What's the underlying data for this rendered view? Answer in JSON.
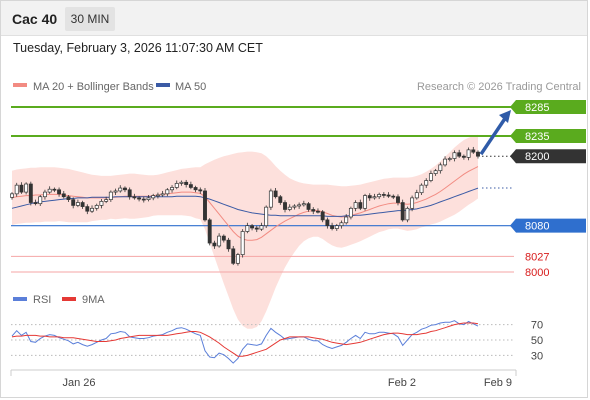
{
  "header": {
    "instrument": "Cac 40",
    "timeframe": "30 MIN",
    "datetime": "Tuesday, February 3, 2026 11:07:30 AM CET"
  },
  "legend": {
    "ma20_label": "MA 20 + Bollinger Bands",
    "ma50_label": "MA 50",
    "copyright": "Research © 2026 Trading Central",
    "rsi_label": "RSI",
    "rsi_ma_label": "9MA"
  },
  "colors": {
    "bollinger_fill": "#fde0dc",
    "ma20": "#f28b82",
    "ma50": "#3b5ba5",
    "resistance": "#5aab1e",
    "support": "#2f6fce",
    "minor_support": "#f4a6a6",
    "minor_support_text": "#d81c1c",
    "last_price": "#333333",
    "arrow": "#2f5ba8",
    "candle_up": "#2e7d32",
    "candle_down": "#c62828",
    "rsi": "#5b7fd9",
    "rsi_ma": "#e53935"
  },
  "chart_data": [
    {
      "type": "candlestick",
      "instrument": "Cac 40",
      "timeframe": "30 MIN",
      "x_labels": [
        "Jan 26",
        "Feb 2",
        "Feb 9"
      ],
      "ylim": [
        7975,
        8305
      ],
      "levels": [
        {
          "value": 8285,
          "label": "8285",
          "kind": "resistance"
        },
        {
          "value": 8235,
          "label": "8235",
          "kind": "resistance"
        },
        {
          "value": 8200,
          "label": "8200",
          "kind": "last_price"
        },
        {
          "value": 8080,
          "label": "8080",
          "kind": "support"
        },
        {
          "value": 8027,
          "label": "8027",
          "kind": "minor_support"
        },
        {
          "value": 8000,
          "label": "8000",
          "kind": "minor_support"
        }
      ],
      "close": [
        8135,
        8150,
        8138,
        8152,
        8120,
        8118,
        8130,
        8138,
        8143,
        8142,
        8135,
        8130,
        8125,
        8115,
        8120,
        8113,
        8105,
        8110,
        8115,
        8122,
        8125,
        8138,
        8140,
        8145,
        8142,
        8130,
        8128,
        8126,
        8125,
        8128,
        8132,
        8133,
        8135,
        8142,
        8146,
        8153,
        8155,
        8151,
        8146,
        8142,
        8140,
        8090,
        8050,
        8045,
        8062,
        8055,
        8040,
        8015,
        8030,
        8070,
        8080,
        8076,
        8074,
        8080,
        8112,
        8140,
        8130,
        8120,
        8108,
        8112,
        8114,
        8116,
        8118,
        8108,
        8105,
        8104,
        8090,
        8080,
        8075,
        8080,
        8085,
        8095,
        8110,
        8120,
        8110,
        8132,
        8128,
        8130,
        8134,
        8133,
        8131,
        8130,
        8120,
        8090,
        8110,
        8128,
        8137,
        8150,
        8158,
        8170,
        8175,
        8185,
        8195,
        8196,
        8206,
        8200,
        8198,
        8211,
        8207,
        8200
      ],
      "ma20": [
        8128,
        8130,
        8131,
        8132,
        8132,
        8133,
        8133,
        8134,
        8134,
        8134,
        8134,
        8133,
        8132,
        8131,
        8130,
        8129,
        8128,
        8128,
        8128,
        8128,
        8128,
        8129,
        8129,
        8130,
        8131,
        8131,
        8131,
        8131,
        8131,
        8131,
        8132,
        8133,
        8134,
        8135,
        8136,
        8137,
        8138,
        8138,
        8138,
        8137,
        8136,
        8130,
        8120,
        8110,
        8100,
        8090,
        8080,
        8070,
        8062,
        8057,
        8055,
        8055,
        8056,
        8060,
        8066,
        8072,
        8078,
        8083,
        8088,
        8092,
        8096,
        8100,
        8103,
        8105,
        8106,
        8106,
        8104,
        8101,
        8098,
        8096,
        8095,
        8096,
        8098,
        8100,
        8102,
        8105,
        8108,
        8111,
        8114,
        8116,
        8118,
        8119,
        8119,
        8118,
        8117,
        8118,
        8120,
        8123,
        8126,
        8130,
        8134,
        8139,
        8145,
        8151,
        8157,
        8163,
        8169,
        8174,
        8178,
        8182
      ],
      "ma50": [
        8110,
        8112,
        8114,
        8116,
        8118,
        8120,
        8121,
        8122,
        8123,
        8124,
        8125,
        8126,
        8127,
        8127,
        8128,
        8128,
        8128,
        8129,
        8129,
        8129,
        8129,
        8129,
        8130,
        8130,
        8130,
        8130,
        8130,
        8130,
        8130,
        8130,
        8130,
        8130,
        8130,
        8130,
        8130,
        8131,
        8131,
        8131,
        8131,
        8131,
        8130,
        8128,
        8126,
        8123,
        8120,
        8117,
        8114,
        8111,
        8108,
        8106,
        8104,
        8102,
        8101,
        8100,
        8099,
        8098,
        8098,
        8097,
        8097,
        8097,
        8097,
        8097,
        8097,
        8097,
        8097,
        8097,
        8097,
        8096,
        8096,
        8096,
        8096,
        8097,
        8097,
        8098,
        8098,
        8099,
        8100,
        8101,
        8102,
        8103,
        8104,
        8105,
        8106,
        8106,
        8107,
        8108,
        8109,
        8111,
        8113,
        8115,
        8118,
        8121,
        8124,
        8127,
        8130,
        8133,
        8136,
        8139,
        8142,
        8145
      ],
      "bb_upper": [
        8175,
        8177,
        8178,
        8179,
        8180,
        8180,
        8181,
        8181,
        8181,
        8181,
        8180,
        8179,
        8178,
        8176,
        8174,
        8172,
        8170,
        8168,
        8167,
        8166,
        8166,
        8166,
        8167,
        8168,
        8169,
        8170,
        8170,
        8169,
        8168,
        8167,
        8167,
        8168,
        8170,
        8172,
        8174,
        8176,
        8178,
        8179,
        8180,
        8181,
        8181,
        8186,
        8190,
        8194,
        8197,
        8200,
        8202,
        8204,
        8206,
        8207,
        8208,
        8208,
        8207,
        8205,
        8200,
        8192,
        8183,
        8175,
        8168,
        8162,
        8158,
        8155,
        8153,
        8152,
        8151,
        8151,
        8151,
        8151,
        8150,
        8149,
        8148,
        8148,
        8149,
        8150,
        8151,
        8153,
        8155,
        8157,
        8159,
        8161,
        8162,
        8163,
        8163,
        8163,
        8163,
        8164,
        8166,
        8169,
        8173,
        8178,
        8184,
        8191,
        8199,
        8207,
        8215,
        8222,
        8228,
        8232,
        8235,
        8237
      ],
      "bb_lower": [
        8081,
        8083,
        8084,
        8085,
        8085,
        8086,
        8086,
        8087,
        8087,
        8087,
        8088,
        8087,
        8086,
        8086,
        8086,
        8086,
        8086,
        8088,
        8089,
        8090,
        8090,
        8092,
        8091,
        8092,
        8093,
        8092,
        8092,
        8093,
        8094,
        8095,
        8097,
        8098,
        8098,
        8098,
        8098,
        8098,
        8098,
        8097,
        8096,
        8093,
        8091,
        8074,
        8050,
        8026,
        8003,
        7980,
        7958,
        7936,
        7918,
        7907,
        7902,
        7902,
        7905,
        7915,
        7932,
        7952,
        7973,
        7991,
        8008,
        8022,
        8034,
        8045,
        8053,
        8058,
        8061,
        8061,
        8057,
        8051,
        8046,
        8043,
        8042,
        8044,
        8047,
        8050,
        8053,
        8057,
        8061,
        8065,
        8069,
        8071,
        8074,
        8075,
        8075,
        8073,
        8071,
        8072,
        8074,
        8077,
        8079,
        8082,
        8084,
        8087,
        8091,
        8095,
        8099,
        8104,
        8110,
        8116,
        8121,
        8127
      ],
      "rsi_ylim": [
        15,
        85
      ],
      "rsi_levels": [
        70,
        50,
        30
      ],
      "rsi": [
        55,
        62,
        56,
        60,
        48,
        47,
        52,
        55,
        57,
        56,
        53,
        51,
        49,
        45,
        47,
        44,
        42,
        44,
        47,
        50,
        52,
        58,
        59,
        61,
        60,
        54,
        53,
        52,
        52,
        53,
        55,
        56,
        57,
        60,
        62,
        65,
        66,
        64,
        61,
        58,
        56,
        36,
        28,
        27,
        33,
        31,
        26,
        20,
        26,
        38,
        45,
        44,
        43,
        45,
        56,
        65,
        60,
        56,
        51,
        52,
        53,
        54,
        54,
        51,
        49,
        49,
        44,
        41,
        39,
        41,
        43,
        47,
        52,
        56,
        52,
        60,
        58,
        58,
        60,
        60,
        59,
        58,
        54,
        43,
        50,
        57,
        60,
        64,
        66,
        69,
        70,
        72,
        73,
        73,
        75,
        71,
        70,
        74,
        71,
        68
      ],
      "rsi_9ma": [
        54,
        55,
        55,
        56,
        56,
        56,
        55,
        55,
        54,
        54,
        54,
        53,
        53,
        53,
        52,
        51,
        50,
        49,
        48,
        48,
        48,
        49,
        50,
        52,
        53,
        54,
        55,
        56,
        56,
        56,
        56,
        56,
        56,
        56,
        57,
        58,
        59,
        60,
        61,
        61,
        60,
        57,
        54,
        50,
        46,
        41,
        37,
        33,
        29,
        29,
        30,
        32,
        34,
        36,
        38,
        42,
        46,
        50,
        52,
        54,
        54,
        54,
        54,
        54,
        53,
        52,
        51,
        49,
        47,
        46,
        45,
        44,
        45,
        46,
        47,
        49,
        51,
        53,
        55,
        57,
        58,
        59,
        59,
        58,
        57,
        57,
        57,
        58,
        59,
        61,
        62,
        64,
        66,
        68,
        70,
        71,
        72,
        72,
        72,
        71
      ]
    }
  ]
}
